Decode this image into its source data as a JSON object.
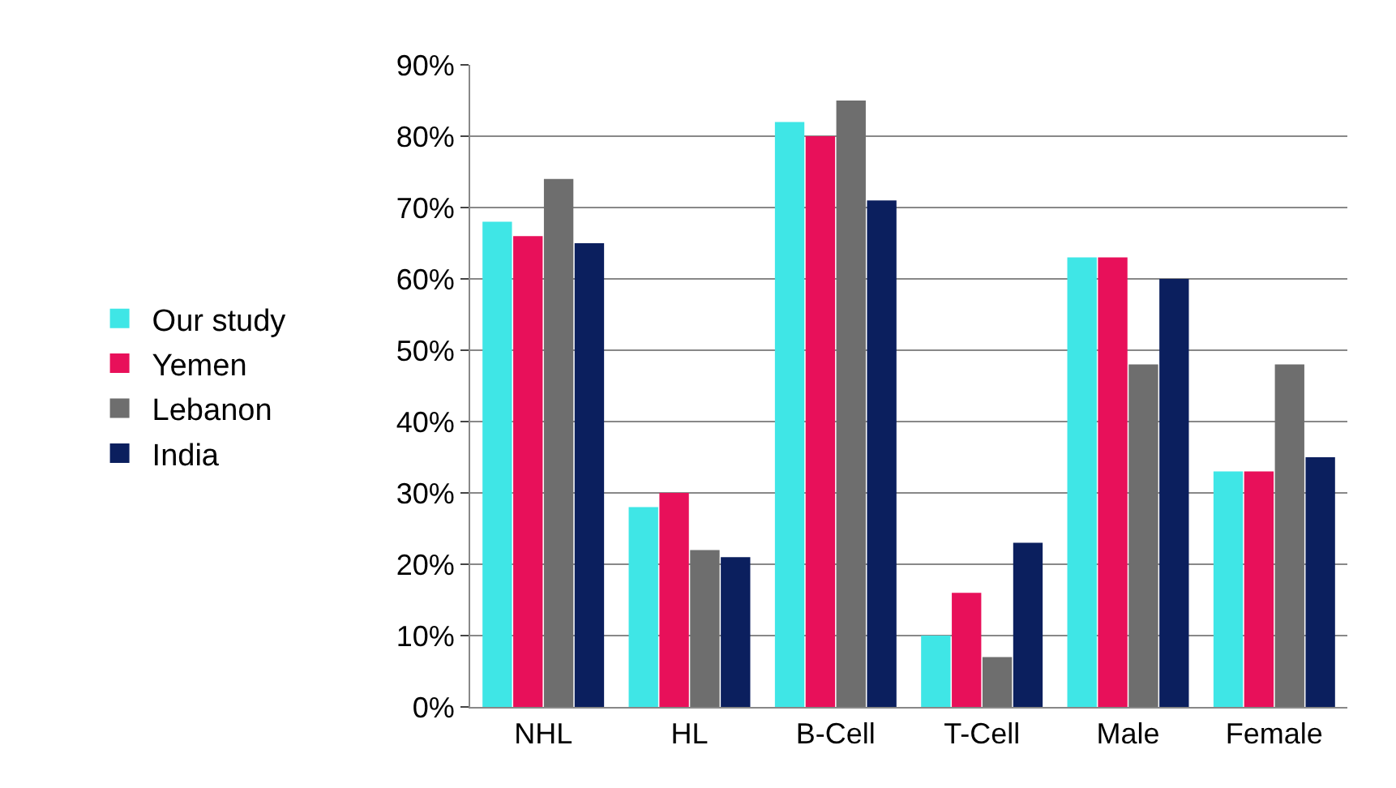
{
  "chart_data": {
    "type": "bar",
    "categories": [
      "NHL",
      "HL",
      "B-Cell",
      "T-Cell",
      "Male",
      "Female"
    ],
    "series": [
      {
        "name": "Our study",
        "color": "#3fe6e6",
        "values": [
          68,
          28,
          82,
          10,
          63,
          33
        ]
      },
      {
        "name": "Yemen",
        "color": "#e8105a",
        "values": [
          66,
          30,
          80,
          16,
          63,
          33
        ]
      },
      {
        "name": "Lebanon",
        "color": "#6e6e6e",
        "values": [
          74,
          22,
          85,
          7,
          48,
          48
        ]
      },
      {
        "name": "India",
        "color": "#0b1f5e",
        "values": [
          65,
          21,
          71,
          23,
          60,
          35
        ]
      }
    ],
    "ylim": [
      0,
      90
    ],
    "yticks": [
      {
        "value": 0,
        "label": "0%"
      },
      {
        "value": 10,
        "label": "10%"
      },
      {
        "value": 20,
        "label": "20%"
      },
      {
        "value": 30,
        "label": "30%"
      },
      {
        "value": 40,
        "label": "40%"
      },
      {
        "value": 50,
        "label": "50%"
      },
      {
        "value": 60,
        "label": "60%"
      },
      {
        "value": 70,
        "label": "70%"
      },
      {
        "value": 80,
        "label": "80%"
      },
      {
        "value": 90,
        "label": "90%"
      }
    ],
    "grid": "y",
    "legend": "left"
  }
}
